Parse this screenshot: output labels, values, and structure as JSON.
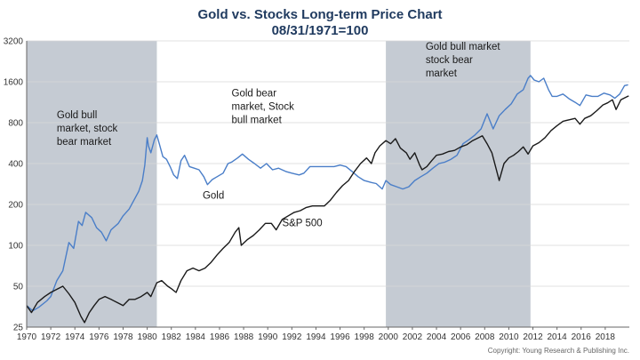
{
  "chart_data": {
    "type": "line",
    "title": "Gold vs. Stocks Long-term Price Chart",
    "subtitle": "08/31/1971=100",
    "y_scale": "log",
    "ylim": [
      25,
      3200
    ],
    "xlim": [
      1970,
      2020
    ],
    "y_ticks": [
      {
        "value": 25,
        "label": "25"
      },
      {
        "value": 50,
        "label": "50"
      },
      {
        "value": 100,
        "label": "100"
      },
      {
        "value": 200,
        "label": "200"
      },
      {
        "value": 400,
        "label": "400"
      },
      {
        "value": 800,
        "label": "800"
      },
      {
        "value": 1600,
        "label": "1600"
      },
      {
        "value": 3200,
        "label": "3200"
      }
    ],
    "x_ticks": [
      {
        "value": 1970,
        "label": "1970"
      },
      {
        "value": 1972,
        "label": "1972"
      },
      {
        "value": 1974,
        "label": "1974"
      },
      {
        "value": 1976,
        "label": "1976"
      },
      {
        "value": 1978,
        "label": "1978"
      },
      {
        "value": 1980,
        "label": "1980"
      },
      {
        "value": 1982,
        "label": "1982"
      },
      {
        "value": 1984,
        "label": "1984"
      },
      {
        "value": 1986,
        "label": "1986"
      },
      {
        "value": 1988,
        "label": "1988"
      },
      {
        "value": 1990,
        "label": "1990"
      },
      {
        "value": 1992,
        "label": "1992"
      },
      {
        "value": 1994,
        "label": "1994"
      },
      {
        "value": 1996,
        "label": "1996"
      },
      {
        "value": 1998,
        "label": "1998"
      },
      {
        "value": 2000,
        "label": "2000"
      },
      {
        "value": 2002,
        "label": "2002"
      },
      {
        "value": 2004,
        "label": "2004"
      },
      {
        "value": 2006,
        "label": "2006"
      },
      {
        "value": 2008,
        "label": "2008"
      },
      {
        "value": 2010,
        "label": "2010"
      },
      {
        "value": 2012,
        "label": "2012"
      },
      {
        "value": 2014,
        "label": "2014"
      },
      {
        "value": 2016,
        "label": "2016"
      },
      {
        "value": 2018,
        "label": "2018"
      }
    ],
    "grid": "horizontal",
    "shaded_periods": [
      {
        "start": 1970.0,
        "end": 1980.8,
        "lines": [
          "Gold bull",
          "market, stock",
          "bear market"
        ],
        "color": "#c5cbd3"
      },
      {
        "start": 1999.8,
        "end": 2011.8,
        "lines": [
          "Gold bull market",
          "stock bear",
          "market"
        ],
        "color": "#c5cbd3"
      }
    ],
    "period_annotations": [
      {
        "lines": [
          "Gold bear",
          "market, Stock",
          "bull market"
        ],
        "x": 1987.0,
        "y": 1250
      }
    ],
    "series": [
      {
        "name": "Gold",
        "color": "#4a7ec8",
        "label": {
          "text": "Gold",
          "x": 1984.6,
          "y": 220
        },
        "points": [
          [
            1970.0,
            36
          ],
          [
            1970.5,
            33
          ],
          [
            1971.0,
            35
          ],
          [
            1971.67,
            39
          ],
          [
            1972.0,
            42
          ],
          [
            1972.5,
            55
          ],
          [
            1973.0,
            65
          ],
          [
            1973.5,
            105
          ],
          [
            1973.9,
            95
          ],
          [
            1974.3,
            150
          ],
          [
            1974.6,
            140
          ],
          [
            1974.9,
            175
          ],
          [
            1975.4,
            160
          ],
          [
            1975.8,
            135
          ],
          [
            1976.2,
            125
          ],
          [
            1976.6,
            108
          ],
          [
            1977.0,
            130
          ],
          [
            1977.6,
            145
          ],
          [
            1978.0,
            165
          ],
          [
            1978.5,
            185
          ],
          [
            1978.9,
            215
          ],
          [
            1979.3,
            250
          ],
          [
            1979.6,
            300
          ],
          [
            1979.8,
            390
          ],
          [
            1980.0,
            620
          ],
          [
            1980.1,
            540
          ],
          [
            1980.3,
            480
          ],
          [
            1980.6,
            600
          ],
          [
            1980.8,
            650
          ],
          [
            1981.0,
            560
          ],
          [
            1981.3,
            450
          ],
          [
            1981.6,
            430
          ],
          [
            1981.9,
            380
          ],
          [
            1982.2,
            330
          ],
          [
            1982.5,
            310
          ],
          [
            1982.8,
            420
          ],
          [
            1983.1,
            460
          ],
          [
            1983.5,
            380
          ],
          [
            1983.9,
            370
          ],
          [
            1984.3,
            360
          ],
          [
            1984.7,
            320
          ],
          [
            1985.0,
            280
          ],
          [
            1985.4,
            305
          ],
          [
            1985.8,
            320
          ],
          [
            1986.3,
            340
          ],
          [
            1986.7,
            400
          ],
          [
            1987.0,
            410
          ],
          [
            1987.5,
            440
          ],
          [
            1987.9,
            470
          ],
          [
            1988.4,
            430
          ],
          [
            1988.9,
            400
          ],
          [
            1989.4,
            370
          ],
          [
            1989.9,
            400
          ],
          [
            1990.4,
            360
          ],
          [
            1990.9,
            370
          ],
          [
            1991.5,
            350
          ],
          [
            1992.0,
            340
          ],
          [
            1992.6,
            330
          ],
          [
            1993.0,
            340
          ],
          [
            1993.5,
            380
          ],
          [
            1994.0,
            380
          ],
          [
            1994.5,
            380
          ],
          [
            1995.0,
            380
          ],
          [
            1995.5,
            380
          ],
          [
            1996.0,
            390
          ],
          [
            1996.5,
            380
          ],
          [
            1997.0,
            350
          ],
          [
            1997.5,
            320
          ],
          [
            1998.0,
            300
          ],
          [
            1998.6,
            290
          ],
          [
            1999.0,
            285
          ],
          [
            1999.5,
            260
          ],
          [
            1999.8,
            300
          ],
          [
            2000.2,
            280
          ],
          [
            2000.7,
            270
          ],
          [
            2001.2,
            260
          ],
          [
            2001.7,
            270
          ],
          [
            2002.2,
            300
          ],
          [
            2002.7,
            320
          ],
          [
            2003.2,
            340
          ],
          [
            2003.7,
            370
          ],
          [
            2004.2,
            400
          ],
          [
            2004.7,
            410
          ],
          [
            2005.2,
            430
          ],
          [
            2005.7,
            460
          ],
          [
            2006.2,
            560
          ],
          [
            2006.7,
            600
          ],
          [
            2007.2,
            650
          ],
          [
            2007.7,
            720
          ],
          [
            2008.2,
            930
          ],
          [
            2008.7,
            720
          ],
          [
            2009.2,
            900
          ],
          [
            2009.7,
            1000
          ],
          [
            2010.2,
            1100
          ],
          [
            2010.7,
            1300
          ],
          [
            2011.2,
            1400
          ],
          [
            2011.6,
            1700
          ],
          [
            2011.8,
            1780
          ],
          [
            2012.1,
            1650
          ],
          [
            2012.5,
            1600
          ],
          [
            2012.9,
            1700
          ],
          [
            2013.3,
            1400
          ],
          [
            2013.6,
            1250
          ],
          [
            2014.0,
            1250
          ],
          [
            2014.5,
            1300
          ],
          [
            2015.0,
            1200
          ],
          [
            2015.5,
            1130
          ],
          [
            2015.9,
            1070
          ],
          [
            2016.4,
            1280
          ],
          [
            2016.9,
            1250
          ],
          [
            2017.4,
            1250
          ],
          [
            2017.9,
            1320
          ],
          [
            2018.4,
            1280
          ],
          [
            2018.8,
            1210
          ],
          [
            2019.2,
            1300
          ],
          [
            2019.6,
            1500
          ],
          [
            2019.9,
            1520
          ]
        ]
      },
      {
        "name": "S&P 500",
        "color": "#1a1a1a",
        "label": {
          "text": "S&P 500",
          "x": 1991.2,
          "y": 138
        },
        "points": [
          [
            1970.0,
            36
          ],
          [
            1970.4,
            32
          ],
          [
            1970.9,
            38
          ],
          [
            1971.5,
            42
          ],
          [
            1972.0,
            45
          ],
          [
            1972.6,
            48
          ],
          [
            1973.0,
            50
          ],
          [
            1973.5,
            44
          ],
          [
            1974.0,
            38
          ],
          [
            1974.5,
            30
          ],
          [
            1974.8,
            27
          ],
          [
            1975.2,
            32
          ],
          [
            1975.6,
            36
          ],
          [
            1976.0,
            40
          ],
          [
            1976.5,
            42
          ],
          [
            1977.0,
            40
          ],
          [
            1977.5,
            38
          ],
          [
            1978.0,
            36
          ],
          [
            1978.5,
            40
          ],
          [
            1979.0,
            40
          ],
          [
            1979.5,
            42
          ],
          [
            1980.0,
            45
          ],
          [
            1980.3,
            42
          ],
          [
            1980.8,
            53
          ],
          [
            1981.2,
            55
          ],
          [
            1981.7,
            50
          ],
          [
            1982.0,
            48
          ],
          [
            1982.4,
            45
          ],
          [
            1982.8,
            55
          ],
          [
            1983.3,
            65
          ],
          [
            1983.8,
            68
          ],
          [
            1984.3,
            65
          ],
          [
            1984.8,
            68
          ],
          [
            1985.3,
            75
          ],
          [
            1985.8,
            85
          ],
          [
            1986.3,
            95
          ],
          [
            1986.8,
            105
          ],
          [
            1987.3,
            125
          ],
          [
            1987.6,
            135
          ],
          [
            1987.8,
            100
          ],
          [
            1988.3,
            110
          ],
          [
            1988.8,
            118
          ],
          [
            1989.3,
            130
          ],
          [
            1989.8,
            145
          ],
          [
            1990.3,
            145
          ],
          [
            1990.7,
            130
          ],
          [
            1991.2,
            155
          ],
          [
            1991.7,
            165
          ],
          [
            1992.2,
            175
          ],
          [
            1992.7,
            180
          ],
          [
            1993.2,
            190
          ],
          [
            1993.7,
            195
          ],
          [
            1994.2,
            195
          ],
          [
            1994.7,
            195
          ],
          [
            1995.2,
            215
          ],
          [
            1995.7,
            245
          ],
          [
            1996.2,
            275
          ],
          [
            1996.7,
            300
          ],
          [
            1997.2,
            350
          ],
          [
            1997.7,
            400
          ],
          [
            1998.2,
            440
          ],
          [
            1998.6,
            400
          ],
          [
            1998.9,
            480
          ],
          [
            1999.3,
            540
          ],
          [
            1999.8,
            590
          ],
          [
            2000.2,
            560
          ],
          [
            2000.6,
            610
          ],
          [
            2001.0,
            520
          ],
          [
            2001.5,
            480
          ],
          [
            2001.8,
            430
          ],
          [
            2002.2,
            480
          ],
          [
            2002.6,
            390
          ],
          [
            2002.8,
            360
          ],
          [
            2003.2,
            380
          ],
          [
            2003.6,
            420
          ],
          [
            2004.0,
            460
          ],
          [
            2004.5,
            470
          ],
          [
            2005.0,
            490
          ],
          [
            2005.5,
            500
          ],
          [
            2006.0,
            530
          ],
          [
            2006.5,
            550
          ],
          [
            2007.0,
            590
          ],
          [
            2007.5,
            620
          ],
          [
            2007.8,
            640
          ],
          [
            2008.2,
            560
          ],
          [
            2008.6,
            480
          ],
          [
            2008.9,
            380
          ],
          [
            2009.2,
            300
          ],
          [
            2009.6,
            400
          ],
          [
            2010.0,
            440
          ],
          [
            2010.4,
            460
          ],
          [
            2010.8,
            490
          ],
          [
            2011.2,
            530
          ],
          [
            2011.6,
            470
          ],
          [
            2012.0,
            540
          ],
          [
            2012.5,
            570
          ],
          [
            2013.0,
            620
          ],
          [
            2013.5,
            700
          ],
          [
            2014.0,
            760
          ],
          [
            2014.5,
            820
          ],
          [
            2015.0,
            840
          ],
          [
            2015.5,
            860
          ],
          [
            2015.9,
            780
          ],
          [
            2016.3,
            860
          ],
          [
            2016.8,
            900
          ],
          [
            2017.3,
            980
          ],
          [
            2017.8,
            1080
          ],
          [
            2018.2,
            1120
          ],
          [
            2018.6,
            1180
          ],
          [
            2018.9,
            1000
          ],
          [
            2019.3,
            1180
          ],
          [
            2019.7,
            1230
          ],
          [
            2019.95,
            1260
          ]
        ]
      }
    ],
    "copyright": "Copyright: Young Research & Publishing Inc."
  }
}
